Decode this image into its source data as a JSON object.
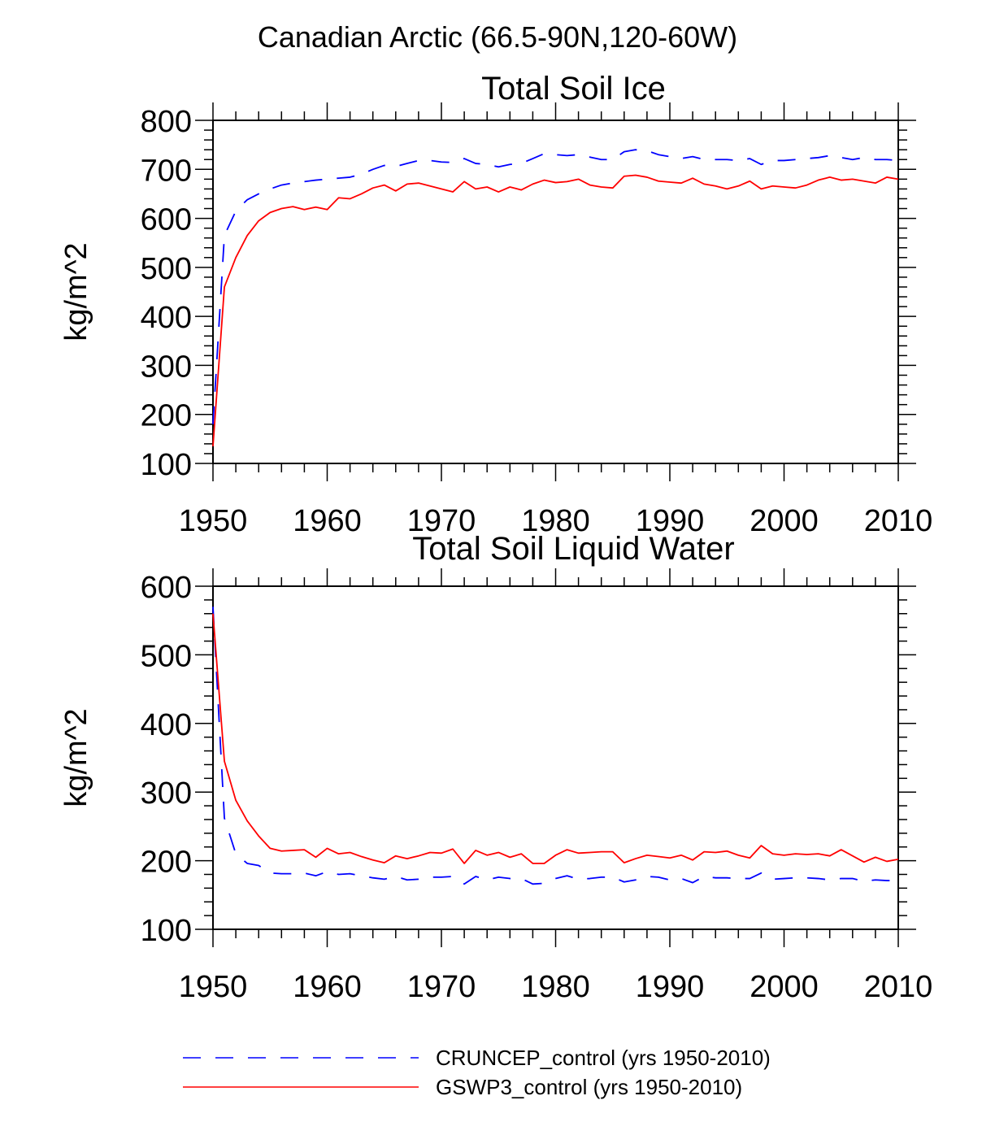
{
  "figure": {
    "suptitle": "Canadian Arctic (66.5-90N,120-60W)"
  },
  "colors": {
    "series_a": "#0000ff",
    "series_b": "#ff0000"
  },
  "legend": {
    "placement": "bottom",
    "entries": [
      {
        "label": "CRUNCEP_control (yrs 1950-2010)",
        "style": "dashed",
        "color": "#0000ff"
      },
      {
        "label": "GSWP3_control (yrs 1950-2010)",
        "style": "solid",
        "color": "#ff0000"
      }
    ]
  },
  "chart_data": [
    {
      "type": "line",
      "title": "Total Soil Ice",
      "ylabel": "kg/m^2",
      "xlabel": "",
      "xlim": [
        1950,
        2010
      ],
      "ylim": [
        100,
        800
      ],
      "xticks": [
        1950,
        1960,
        1970,
        1980,
        1990,
        2000,
        2010
      ],
      "yticks": [
        100,
        200,
        300,
        400,
        500,
        600,
        700,
        800
      ],
      "grid": false,
      "x": [
        1950,
        1951,
        1952,
        1953,
        1954,
        1955,
        1956,
        1957,
        1958,
        1959,
        1960,
        1961,
        1962,
        1963,
        1964,
        1965,
        1966,
        1967,
        1968,
        1969,
        1970,
        1971,
        1972,
        1973,
        1974,
        1975,
        1976,
        1977,
        1978,
        1979,
        1980,
        1981,
        1982,
        1983,
        1984,
        1985,
        1986,
        1987,
        1988,
        1989,
        1990,
        1991,
        1992,
        1993,
        1994,
        1995,
        1996,
        1997,
        1998,
        1999,
        2000,
        2001,
        2002,
        2003,
        2004,
        2005,
        2006,
        2007,
        2008,
        2009,
        2010
      ],
      "series": [
        {
          "name": "CRUNCEP_control (yrs 1950-2010)",
          "values": [
            180,
            565,
            615,
            638,
            650,
            660,
            668,
            672,
            675,
            678,
            680,
            682,
            684,
            690,
            700,
            708,
            706,
            712,
            718,
            718,
            715,
            714,
            722,
            712,
            710,
            705,
            710,
            712,
            722,
            732,
            730,
            728,
            730,
            725,
            720,
            720,
            736,
            740,
            738,
            730,
            726,
            722,
            726,
            720,
            720,
            720,
            718,
            722,
            710,
            718,
            718,
            720,
            722,
            724,
            728,
            724,
            720,
            724,
            720,
            720,
            718
          ]
        },
        {
          "name": "GSWP3_control (yrs 1950-2010)",
          "values": [
            135,
            460,
            520,
            565,
            595,
            612,
            620,
            624,
            618,
            623,
            618,
            642,
            640,
            650,
            662,
            668,
            656,
            670,
            672,
            666,
            660,
            654,
            675,
            660,
            664,
            654,
            664,
            658,
            670,
            678,
            673,
            675,
            680,
            668,
            664,
            662,
            686,
            688,
            684,
            676,
            674,
            672,
            682,
            670,
            666,
            660,
            666,
            676,
            660,
            666,
            664,
            662,
            668,
            678,
            684,
            678,
            680,
            676,
            672,
            684,
            680
          ]
        }
      ]
    },
    {
      "type": "line",
      "title": "Total Soil Liquid Water",
      "ylabel": "kg/m^2",
      "xlabel": "",
      "xlim": [
        1950,
        2010
      ],
      "ylim": [
        100,
        600
      ],
      "xticks": [
        1950,
        1960,
        1970,
        1980,
        1990,
        2000,
        2010
      ],
      "yticks": [
        100,
        200,
        300,
        400,
        500,
        600
      ],
      "grid": false,
      "x": [
        1950,
        1951,
        1952,
        1953,
        1954,
        1955,
        1956,
        1957,
        1958,
        1959,
        1960,
        1961,
        1962,
        1963,
        1964,
        1965,
        1966,
        1967,
        1968,
        1969,
        1970,
        1971,
        1972,
        1973,
        1974,
        1975,
        1976,
        1977,
        1978,
        1979,
        1980,
        1981,
        1982,
        1983,
        1984,
        1985,
        1986,
        1987,
        1988,
        1989,
        1990,
        1991,
        1992,
        1993,
        1994,
        1995,
        1996,
        1997,
        1998,
        1999,
        2000,
        2001,
        2002,
        2003,
        2004,
        2005,
        2006,
        2007,
        2008,
        2009,
        2010
      ],
      "series": [
        {
          "name": "CRUNCEP_control (yrs 1950-2010)",
          "values": [
            570,
            262,
            210,
            196,
            193,
            182,
            181,
            181,
            182,
            178,
            184,
            180,
            181,
            178,
            175,
            173,
            177,
            172,
            173,
            176,
            176,
            177,
            166,
            177,
            172,
            176,
            174,
            174,
            166,
            167,
            174,
            178,
            173,
            174,
            176,
            176,
            169,
            172,
            177,
            176,
            172,
            174,
            168,
            177,
            175,
            175,
            174,
            174,
            182,
            173,
            174,
            175,
            175,
            174,
            172,
            174,
            174,
            170,
            172,
            171,
            171
          ]
        },
        {
          "name": "GSWP3_control (yrs 1950-2010)",
          "values": [
            560,
            345,
            288,
            258,
            236,
            218,
            214,
            215,
            216,
            205,
            218,
            210,
            212,
            206,
            201,
            197,
            207,
            203,
            207,
            212,
            211,
            217,
            196,
            215,
            208,
            212,
            205,
            210,
            196,
            196,
            208,
            216,
            211,
            212,
            213,
            213,
            197,
            203,
            208,
            206,
            204,
            208,
            201,
            213,
            212,
            214,
            208,
            204,
            222,
            210,
            208,
            210,
            209,
            210,
            207,
            216,
            207,
            198,
            205,
            199,
            202
          ]
        }
      ]
    }
  ]
}
